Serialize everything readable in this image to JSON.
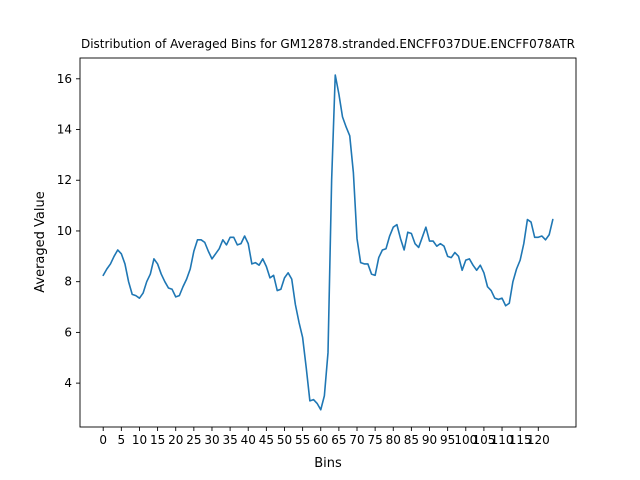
{
  "chart_data": {
    "type": "line",
    "title": "Distribution of Averaged Bins for GM12878.stranded.ENCFF037DUE.ENCFF078ATR",
    "xlabel": "Bins",
    "ylabel": "Averaged Value",
    "xlim": [
      -6.4,
      130.4
    ],
    "ylim": [
      2.27,
      16.82
    ],
    "xticks": [
      0,
      5,
      10,
      15,
      20,
      25,
      30,
      35,
      40,
      45,
      50,
      55,
      60,
      65,
      70,
      75,
      80,
      85,
      90,
      95,
      100,
      105,
      110,
      115,
      120
    ],
    "yticks": [
      4,
      6,
      8,
      10,
      12,
      14,
      16
    ],
    "grid": false,
    "series": [
      {
        "color": "#1f77b4",
        "x": [
          0,
          1,
          2,
          3,
          4,
          5,
          6,
          7,
          8,
          9,
          10,
          11,
          12,
          13,
          14,
          15,
          16,
          17,
          18,
          19,
          20,
          21,
          22,
          23,
          24,
          25,
          26,
          27,
          28,
          29,
          30,
          31,
          32,
          33,
          34,
          35,
          36,
          37,
          38,
          39,
          40,
          41,
          42,
          43,
          44,
          45,
          46,
          47,
          48,
          49,
          50,
          51,
          52,
          53,
          54,
          55,
          56,
          57,
          58,
          59,
          60,
          61,
          62,
          63,
          64,
          65,
          66,
          67,
          68,
          69,
          70,
          71,
          72,
          73,
          74,
          75,
          76,
          77,
          78,
          79,
          80,
          81,
          82,
          83,
          84,
          85,
          86,
          87,
          88,
          89,
          90,
          91,
          92,
          93,
          94,
          95,
          96,
          97,
          98,
          99,
          100,
          101,
          102,
          103,
          104,
          105,
          106,
          107,
          108,
          109,
          110,
          111,
          112,
          113,
          114,
          115,
          116,
          117,
          118,
          119,
          120,
          121,
          122,
          123,
          124
        ],
        "values": [
          8.25,
          8.5,
          8.7,
          9.0,
          9.25,
          9.1,
          8.7,
          8.0,
          7.5,
          7.45,
          7.35,
          7.55,
          8.0,
          8.3,
          8.9,
          8.7,
          8.3,
          8.0,
          7.75,
          7.7,
          7.4,
          7.45,
          7.8,
          8.1,
          8.5,
          9.2,
          9.65,
          9.65,
          9.55,
          9.2,
          8.9,
          9.1,
          9.3,
          9.65,
          9.45,
          9.75,
          9.75,
          9.45,
          9.5,
          9.8,
          9.5,
          8.7,
          8.75,
          8.65,
          8.9,
          8.6,
          8.15,
          8.25,
          7.65,
          7.7,
          8.15,
          8.35,
          8.1,
          7.1,
          6.4,
          5.8,
          4.6,
          3.3,
          3.35,
          3.2,
          2.95,
          3.5,
          5.2,
          12.0,
          16.15,
          15.4,
          14.5,
          14.1,
          13.75,
          12.3,
          9.7,
          8.75,
          8.7,
          8.7,
          8.3,
          8.25,
          8.95,
          9.25,
          9.3,
          9.8,
          10.15,
          10.25,
          9.7,
          9.25,
          9.95,
          9.9,
          9.5,
          9.35,
          9.75,
          10.15,
          9.6,
          9.6,
          9.4,
          9.5,
          9.4,
          9.0,
          8.95,
          9.15,
          9.0,
          8.45,
          8.85,
          8.9,
          8.65,
          8.45,
          8.65,
          8.35,
          7.8,
          7.65,
          7.35,
          7.3,
          7.35,
          7.05,
          7.15,
          8.0,
          8.5,
          8.85,
          9.5,
          10.45,
          10.35,
          9.75,
          9.75,
          9.8,
          9.65,
          9.85,
          10.45
        ]
      }
    ]
  }
}
